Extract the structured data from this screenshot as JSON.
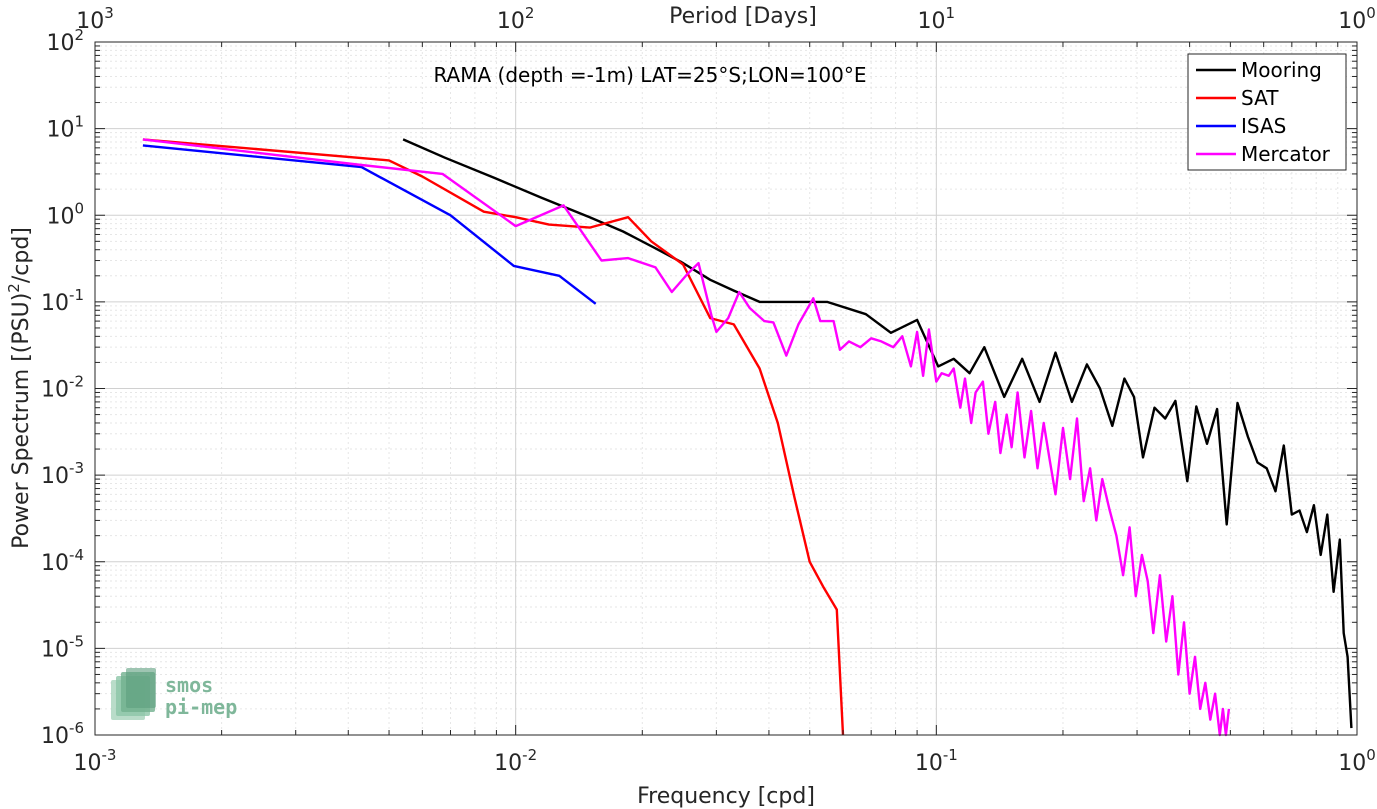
{
  "chart_data": {
    "type": "line",
    "title": "RAMA (depth =-1m) LAT=25°S;LON=100°E",
    "xlabel": "Frequency [cpd]",
    "ylabel": "Power Spectrum [(PSU)^2/cpd]",
    "ylabel_parts": [
      "Power Spectrum [(PSU)",
      "2",
      "/cpd]"
    ],
    "top_xlabel": "Period [Days]",
    "xscale": "log",
    "yscale": "log",
    "xlim": [
      0.001,
      1
    ],
    "ylim": [
      1e-06,
      100
    ],
    "grid": true,
    "legend_position": "top-right",
    "x_ticks": [
      {
        "value": 0.001,
        "base": "10",
        "exp": "-3"
      },
      {
        "value": 0.01,
        "base": "10",
        "exp": "-2"
      },
      {
        "value": 0.1,
        "base": "10",
        "exp": "-1"
      },
      {
        "value": 1,
        "base": "10",
        "exp": "0"
      }
    ],
    "y_ticks": [
      {
        "value": 1e-06,
        "base": "10",
        "exp": "-6"
      },
      {
        "value": 1e-05,
        "base": "10",
        "exp": "-5"
      },
      {
        "value": 0.0001,
        "base": "10",
        "exp": "-4"
      },
      {
        "value": 0.001,
        "base": "10",
        "exp": "-3"
      },
      {
        "value": 0.01,
        "base": "10",
        "exp": "-2"
      },
      {
        "value": 0.1,
        "base": "10",
        "exp": "-1"
      },
      {
        "value": 1,
        "base": "10",
        "exp": "0"
      },
      {
        "value": 10,
        "base": "10",
        "exp": "1"
      },
      {
        "value": 100,
        "base": "10",
        "exp": "2"
      }
    ],
    "top_ticks": [
      {
        "value": 0.001,
        "base": "10",
        "exp": "3"
      },
      {
        "value": 0.01,
        "base": "10",
        "exp": "2"
      },
      {
        "value": 0.1,
        "base": "10",
        "exp": "1"
      },
      {
        "value": 1,
        "base": "10",
        "exp": "0"
      }
    ],
    "series": [
      {
        "name": "Mooring",
        "color": "#000000",
        "x": [
          0.0054,
          0.0068,
          0.0089,
          0.0115,
          0.015,
          0.018,
          0.0214,
          0.025,
          0.029,
          0.033,
          0.038,
          0.042,
          0.048,
          0.055,
          0.068,
          0.078,
          0.09,
          0.101,
          0.11,
          0.12,
          0.13,
          0.145,
          0.16,
          0.176,
          0.192,
          0.21,
          0.228,
          0.245,
          0.262,
          0.28,
          0.295,
          0.31,
          0.33,
          0.35,
          0.37,
          0.395,
          0.415,
          0.44,
          0.465,
          0.49,
          0.52,
          0.55,
          0.58,
          0.61,
          0.64,
          0.67,
          0.7,
          0.73,
          0.76,
          0.79,
          0.82,
          0.85,
          0.88,
          0.91,
          0.93,
          0.95,
          0.97
        ],
        "y": [
          7.5,
          4.6,
          2.7,
          1.6,
          0.95,
          0.65,
          0.42,
          0.28,
          0.18,
          0.135,
          0.1,
          0.1,
          0.1,
          0.1,
          0.072,
          0.044,
          0.062,
          0.018,
          0.022,
          0.015,
          0.03,
          0.008,
          0.022,
          0.007,
          0.026,
          0.007,
          0.019,
          0.01,
          0.0037,
          0.013,
          0.008,
          0.0016,
          0.006,
          0.0045,
          0.0072,
          0.00085,
          0.0062,
          0.0023,
          0.0058,
          0.00027,
          0.0068,
          0.0028,
          0.0014,
          0.0012,
          0.00065,
          0.0022,
          0.00035,
          0.00039,
          0.00022,
          0.00045,
          0.00012,
          0.00035,
          4.5e-05,
          0.00018,
          1.5e-05,
          8e-06,
          1.2e-06
        ]
      },
      {
        "name": "SAT",
        "color": "#ff0000",
        "x": [
          0.0013,
          0.005,
          0.006,
          0.0084,
          0.01,
          0.012,
          0.015,
          0.0185,
          0.021,
          0.025,
          0.029,
          0.033,
          0.038,
          0.042,
          0.046,
          0.05,
          0.054,
          0.058,
          0.06
        ],
        "y": [
          7.5,
          4.3,
          2.8,
          1.1,
          0.95,
          0.78,
          0.72,
          0.95,
          0.5,
          0.27,
          0.065,
          0.055,
          0.017,
          0.004,
          0.00055,
          0.0001,
          5e-05,
          2.8e-05,
          1e-06
        ]
      },
      {
        "name": "ISAS",
        "color": "#0000ff",
        "x": [
          0.0013,
          0.0043,
          0.007,
          0.0099,
          0.0127,
          0.0155
        ],
        "y": [
          6.4,
          3.6,
          1.0,
          0.26,
          0.2,
          0.095
        ]
      },
      {
        "name": "Mercator",
        "color": "#ff00ff",
        "x": [
          0.0013,
          0.0043,
          0.0067,
          0.01,
          0.013,
          0.016,
          0.0185,
          0.0215,
          0.0235,
          0.0256,
          0.0272,
          0.0292,
          0.03,
          0.032,
          0.034,
          0.036,
          0.039,
          0.041,
          0.044,
          0.047,
          0.051,
          0.053,
          0.057,
          0.059,
          0.062,
          0.066,
          0.07,
          0.074,
          0.079,
          0.083,
          0.087,
          0.09,
          0.093,
          0.096,
          0.1,
          0.103,
          0.107,
          0.11,
          0.114,
          0.117,
          0.121,
          0.124,
          0.129,
          0.133,
          0.138,
          0.142,
          0.147,
          0.151,
          0.156,
          0.162,
          0.168,
          0.174,
          0.18,
          0.186,
          0.192,
          0.2,
          0.208,
          0.216,
          0.224,
          0.232,
          0.24,
          0.248,
          0.258,
          0.268,
          0.278,
          0.288,
          0.298,
          0.308,
          0.318,
          0.328,
          0.34,
          0.352,
          0.364,
          0.376,
          0.388,
          0.4,
          0.412,
          0.424,
          0.436,
          0.448,
          0.46,
          0.472,
          0.48,
          0.488,
          0.496
        ],
        "y": [
          7.5,
          3.8,
          3.0,
          0.75,
          1.3,
          0.3,
          0.32,
          0.25,
          0.13,
          0.21,
          0.28,
          0.07,
          0.045,
          0.065,
          0.13,
          0.085,
          0.06,
          0.058,
          0.024,
          0.055,
          0.11,
          0.06,
          0.06,
          0.028,
          0.035,
          0.03,
          0.038,
          0.035,
          0.03,
          0.04,
          0.018,
          0.045,
          0.014,
          0.048,
          0.012,
          0.015,
          0.014,
          0.017,
          0.006,
          0.013,
          0.004,
          0.009,
          0.012,
          0.003,
          0.007,
          0.0018,
          0.005,
          0.0021,
          0.009,
          0.0016,
          0.0055,
          0.0012,
          0.004,
          0.0015,
          0.0006,
          0.0035,
          0.0009,
          0.0045,
          0.0005,
          0.0012,
          0.0003,
          0.0009,
          0.0004,
          0.0002,
          7e-05,
          0.00025,
          4e-05,
          0.00012,
          6e-05,
          1.5e-05,
          7e-05,
          1.2e-05,
          4e-05,
          5e-06,
          2e-05,
          3e-06,
          8e-06,
          2e-06,
          4e-06,
          1.5e-06,
          3e-06,
          1e-06,
          2e-06,
          1e-06,
          2e-06
        ]
      }
    ]
  },
  "logo": {
    "line1": "smos",
    "line2": "pi-mep"
  }
}
